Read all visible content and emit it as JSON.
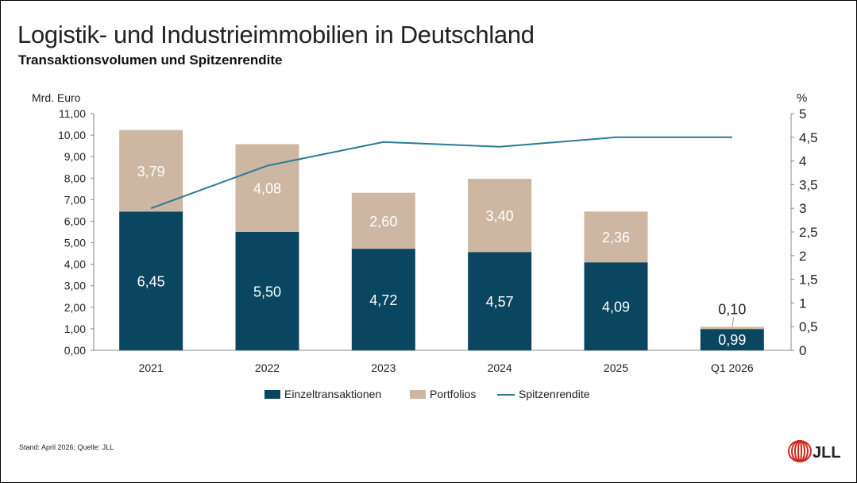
{
  "title": "Logistik- und Industrieimmobilien in Deutschland",
  "subtitle": "Transaktionsvolumen und Spitzenrendite",
  "footer": "Stand: April 2026; Quelle: JLL",
  "logo": "JLL",
  "colors": {
    "einzel": "#0B4660",
    "portfolio": "#CDB6A2",
    "line": "#2A7B96"
  },
  "chart_data": {
    "type": "bar",
    "stacked": true,
    "categories": [
      "2021",
      "2022",
      "2023",
      "2024",
      "2025",
      "Q1 2026"
    ],
    "ylabel": "Mrd. Euro",
    "y2label": "%",
    "ylim": [
      0,
      11
    ],
    "y2lim": [
      0,
      5
    ],
    "yticks": [
      "0,00",
      "1,00",
      "2,00",
      "3,00",
      "4,00",
      "5,00",
      "6,00",
      "7,00",
      "8,00",
      "9,00",
      "10,00",
      "11,00"
    ],
    "y2ticks": [
      "0",
      "0,5",
      "1",
      "1,5",
      "2",
      "2,5",
      "3",
      "3,5",
      "4",
      "4,5",
      "5"
    ],
    "grid": false,
    "legend_position": "bottom",
    "series": [
      {
        "name": "Einzeltransaktionen",
        "type": "bar",
        "values": [
          6.45,
          5.5,
          4.72,
          4.57,
          4.09,
          0.99
        ],
        "labels": [
          "6,45",
          "5,50",
          "4,72",
          "4,57",
          "4,09",
          "0,99"
        ]
      },
      {
        "name": "Portfolios",
        "type": "bar",
        "values": [
          3.79,
          4.08,
          2.6,
          3.4,
          2.36,
          0.1
        ],
        "labels": [
          "3,79",
          "4,08",
          "2,60",
          "3,40",
          "2,36",
          "0,10"
        ]
      },
      {
        "name": "Spitzenrendite",
        "type": "line",
        "axis": "right",
        "values": [
          3.0,
          3.9,
          4.4,
          4.3,
          4.5,
          4.5
        ]
      }
    ]
  }
}
